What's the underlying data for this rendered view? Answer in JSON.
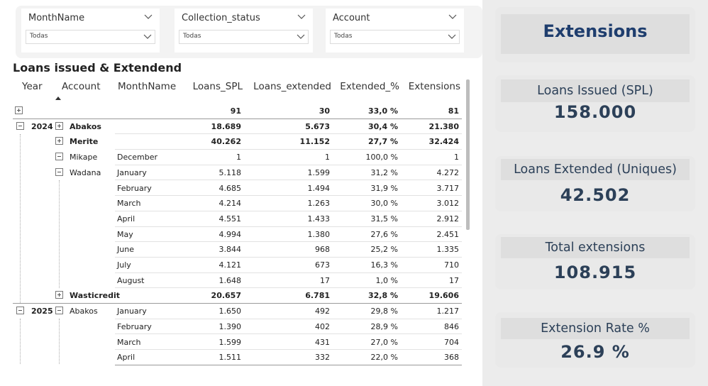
{
  "slicers": [
    {
      "title": "MonthName",
      "value": "Todas"
    },
    {
      "title": "Collection_status",
      "value": "Todas"
    },
    {
      "title": "Account",
      "value": "Todas"
    }
  ],
  "matrix": {
    "title": "Loans issued & Extendend",
    "headers": {
      "year": "Year",
      "account": "Account",
      "month": "MonthName",
      "loans_spl": "Loans_SPL",
      "loans_extended": "Loans_extended",
      "extended_pct": "Extended_%",
      "extensions": "Extensions"
    },
    "rows": [
      {
        "year": "",
        "account": "",
        "month": "",
        "loans": "91",
        "ext": "30",
        "pct": "33,0 %",
        "exts": "81"
      },
      {
        "year": "2024",
        "account": "Abakos",
        "month": "",
        "loans": "18.689",
        "ext": "5.673",
        "pct": "30,4 %",
        "exts": "21.380"
      },
      {
        "year": "",
        "account": "Merite",
        "month": "",
        "loans": "40.262",
        "ext": "11.152",
        "pct": "27,7 %",
        "exts": "32.424"
      },
      {
        "year": "",
        "account": "Mikape",
        "month": "December",
        "loans": "1",
        "ext": "1",
        "pct": "100,0 %",
        "exts": "1"
      },
      {
        "year": "",
        "account": "Wadana",
        "month": "January",
        "loans": "5.118",
        "ext": "1.599",
        "pct": "31,2 %",
        "exts": "4.272"
      },
      {
        "year": "",
        "account": "",
        "month": "February",
        "loans": "4.685",
        "ext": "1.494",
        "pct": "31,9 %",
        "exts": "3.717"
      },
      {
        "year": "",
        "account": "",
        "month": "March",
        "loans": "4.214",
        "ext": "1.263",
        "pct": "30,0 %",
        "exts": "3.012"
      },
      {
        "year": "",
        "account": "",
        "month": "April",
        "loans": "4.551",
        "ext": "1.433",
        "pct": "31,5 %",
        "exts": "2.912"
      },
      {
        "year": "",
        "account": "",
        "month": "May",
        "loans": "4.994",
        "ext": "1.380",
        "pct": "27,6 %",
        "exts": "2.451"
      },
      {
        "year": "",
        "account": "",
        "month": "June",
        "loans": "3.844",
        "ext": "968",
        "pct": "25,2 %",
        "exts": "1.335"
      },
      {
        "year": "",
        "account": "",
        "month": "July",
        "loans": "4.121",
        "ext": "673",
        "pct": "16,3 %",
        "exts": "710"
      },
      {
        "year": "",
        "account": "",
        "month": "August",
        "loans": "1.648",
        "ext": "17",
        "pct": "1,0 %",
        "exts": "17"
      },
      {
        "year": "",
        "account": "Wasticredit",
        "month": "",
        "loans": "20.657",
        "ext": "6.781",
        "pct": "32,8 %",
        "exts": "19.606"
      },
      {
        "year": "2025",
        "account": "Abakos",
        "month": "January",
        "loans": "1.650",
        "ext": "492",
        "pct": "29,8 %",
        "exts": "1.217"
      },
      {
        "year": "",
        "account": "",
        "month": "February",
        "loans": "1.390",
        "ext": "402",
        "pct": "28,9 %",
        "exts": "846"
      },
      {
        "year": "",
        "account": "",
        "month": "March",
        "loans": "1.599",
        "ext": "431",
        "pct": "27,0 %",
        "exts": "704"
      },
      {
        "year": "",
        "account": "",
        "month": "April",
        "loans": "1.511",
        "ext": "332",
        "pct": "22,0 %",
        "exts": "368"
      }
    ]
  },
  "cards": {
    "extensions_title": "Extensions",
    "loans_issued": {
      "label": "Loans Issued (SPL)",
      "value": "158.000"
    },
    "loans_extended": {
      "label": "Loans Extended (Uniques)",
      "value": "42.502"
    },
    "total_extensions": {
      "label": "Total extensions",
      "value": "108.915"
    },
    "extension_rate": {
      "label": "Extension Rate %",
      "value": "26.9 %"
    }
  },
  "colors": {
    "card_text": "#2c4058",
    "title_blue": "#1f3e6e",
    "page_background": "#ececec"
  }
}
